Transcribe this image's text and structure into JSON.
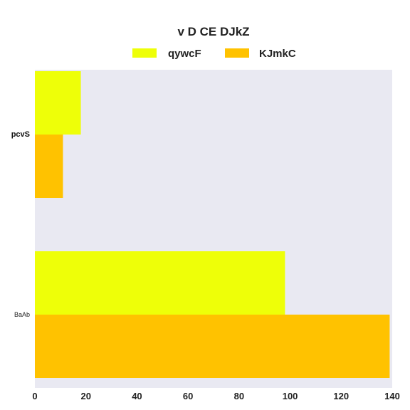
{
  "chart_data": {
    "type": "bar",
    "orientation": "horizontal",
    "title": "v   D CE DJkZ",
    "xlabel": "",
    "ylabel": "",
    "categories": [
      "pcvS",
      "BaAb"
    ],
    "series": [
      {
        "name": "qywcF",
        "color": "#eeff08",
        "values": [
          18,
          98
        ]
      },
      {
        "name": "KJmkC",
        "color": "#ffc200",
        "values": [
          11,
          139
        ]
      }
    ],
    "xlim": [
      0,
      140
    ],
    "xticks": [
      0,
      20,
      40,
      60,
      80,
      100,
      120,
      140
    ],
    "legend_position": "top-center",
    "grid": false,
    "background": "#e9e9f2"
  }
}
